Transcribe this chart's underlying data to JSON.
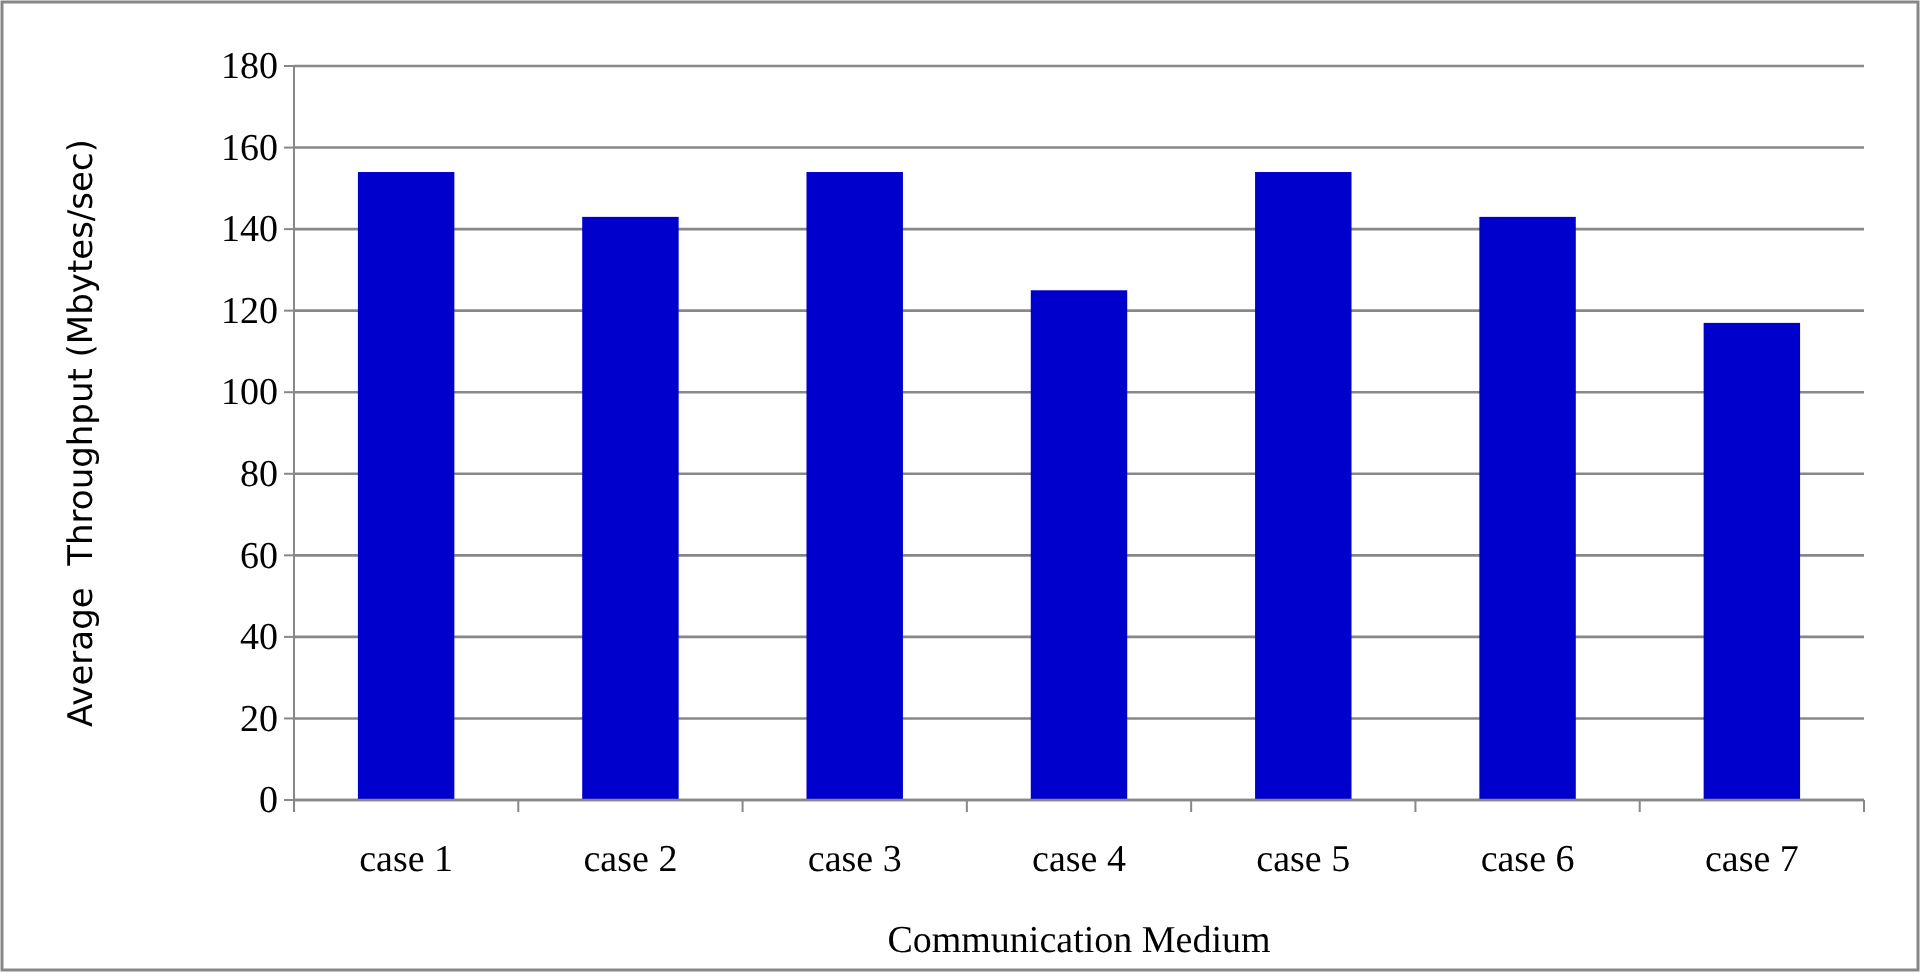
{
  "chart_data": {
    "type": "bar",
    "xlabel": "Communication Medium",
    "ylabel": "Average  Throughput (Mbytes/sec)",
    "categories": [
      "case 1",
      "case 2",
      "case 3",
      "case 4",
      "case 5",
      "case 6",
      "case 7"
    ],
    "values": [
      154,
      143,
      154,
      125,
      154,
      143,
      117
    ],
    "color": "#0000cc",
    "ylim": [
      0,
      180
    ],
    "yticks": [
      0,
      20,
      40,
      60,
      80,
      100,
      120,
      140,
      160,
      180
    ],
    "grid": "y"
  }
}
